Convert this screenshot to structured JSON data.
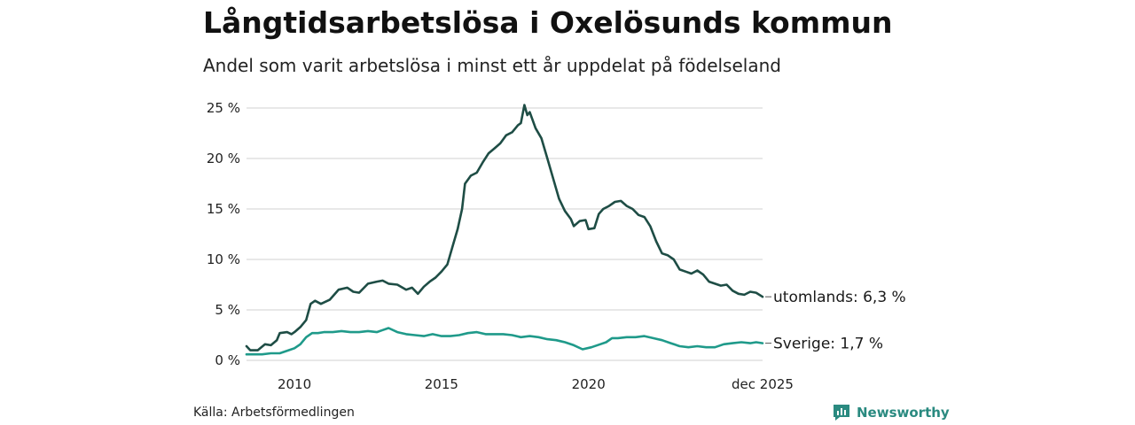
{
  "title": "Långtidsarbetslösa i Oxelösunds kommun",
  "subtitle": "Andel som varit arbetslösa i minst ett år uppdelat på födelseland",
  "source": "Källa: Arbetsförmedlingen",
  "brand": "Newsworthy",
  "chart_data": {
    "type": "line",
    "title": "Långtidsarbetslösa i Oxelösunds kommun",
    "subtitle": "Andel som varit arbetslösa i minst ett år uppdelat på födelseland",
    "x_range": [
      2008.37,
      2025.92
    ],
    "y_range": [
      0,
      25
    ],
    "y_ticks": [
      0,
      5,
      10,
      15,
      20,
      25
    ],
    "y_tick_labels": [
      "0 %",
      "5 %",
      "10 %",
      "15 %",
      "20 %",
      "25 %"
    ],
    "x_ticks": [
      2010,
      2015,
      2020,
      2025.92
    ],
    "x_tick_labels": [
      "2010",
      "2015",
      "2020",
      "dec 2025"
    ],
    "grid": true,
    "series": [
      {
        "name": "utomlands",
        "end_label": "utomlands: 6,3 %",
        "color": "#1e4d45",
        "points": [
          [
            2008.37,
            1.4
          ],
          [
            2008.5,
            1.0
          ],
          [
            2008.75,
            1.0
          ],
          [
            2009.0,
            1.6
          ],
          [
            2009.2,
            1.5
          ],
          [
            2009.4,
            2.0
          ],
          [
            2009.5,
            2.7
          ],
          [
            2009.75,
            2.8
          ],
          [
            2009.9,
            2.6
          ],
          [
            2010.0,
            2.8
          ],
          [
            2010.2,
            3.3
          ],
          [
            2010.4,
            4.0
          ],
          [
            2010.55,
            5.6
          ],
          [
            2010.7,
            5.9
          ],
          [
            2010.9,
            5.6
          ],
          [
            2011.2,
            6.0
          ],
          [
            2011.5,
            7.0
          ],
          [
            2011.8,
            7.2
          ],
          [
            2012.0,
            6.8
          ],
          [
            2012.2,
            6.7
          ],
          [
            2012.5,
            7.6
          ],
          [
            2012.8,
            7.8
          ],
          [
            2013.0,
            7.9
          ],
          [
            2013.2,
            7.6
          ],
          [
            2013.5,
            7.5
          ],
          [
            2013.8,
            7.0
          ],
          [
            2014.0,
            7.2
          ],
          [
            2014.2,
            6.6
          ],
          [
            2014.4,
            7.3
          ],
          [
            2014.6,
            7.8
          ],
          [
            2014.8,
            8.2
          ],
          [
            2015.0,
            8.8
          ],
          [
            2015.2,
            9.5
          ],
          [
            2015.4,
            11.5
          ],
          [
            2015.55,
            13.0
          ],
          [
            2015.7,
            15.0
          ],
          [
            2015.8,
            17.5
          ],
          [
            2016.0,
            18.3
          ],
          [
            2016.2,
            18.6
          ],
          [
            2016.4,
            19.6
          ],
          [
            2016.6,
            20.5
          ],
          [
            2016.8,
            21.0
          ],
          [
            2017.0,
            21.5
          ],
          [
            2017.2,
            22.3
          ],
          [
            2017.4,
            22.6
          ],
          [
            2017.6,
            23.3
          ],
          [
            2017.7,
            23.5
          ],
          [
            2017.82,
            25.3
          ],
          [
            2017.92,
            24.3
          ],
          [
            2018.0,
            24.6
          ],
          [
            2018.2,
            23.0
          ],
          [
            2018.4,
            22.0
          ],
          [
            2018.6,
            20.0
          ],
          [
            2018.8,
            18.0
          ],
          [
            2019.0,
            16.0
          ],
          [
            2019.2,
            14.8
          ],
          [
            2019.4,
            14.0
          ],
          [
            2019.5,
            13.3
          ],
          [
            2019.7,
            13.8
          ],
          [
            2019.9,
            13.9
          ],
          [
            2020.0,
            13.0
          ],
          [
            2020.2,
            13.1
          ],
          [
            2020.35,
            14.5
          ],
          [
            2020.5,
            15.0
          ],
          [
            2020.7,
            15.3
          ],
          [
            2020.9,
            15.7
          ],
          [
            2021.1,
            15.8
          ],
          [
            2021.3,
            15.3
          ],
          [
            2021.5,
            15.0
          ],
          [
            2021.7,
            14.4
          ],
          [
            2021.9,
            14.2
          ],
          [
            2022.1,
            13.3
          ],
          [
            2022.3,
            11.8
          ],
          [
            2022.5,
            10.6
          ],
          [
            2022.7,
            10.4
          ],
          [
            2022.9,
            10.0
          ],
          [
            2023.1,
            9.0
          ],
          [
            2023.3,
            8.8
          ],
          [
            2023.5,
            8.6
          ],
          [
            2023.7,
            8.9
          ],
          [
            2023.9,
            8.5
          ],
          [
            2024.1,
            7.8
          ],
          [
            2024.3,
            7.6
          ],
          [
            2024.5,
            7.4
          ],
          [
            2024.7,
            7.5
          ],
          [
            2024.9,
            6.9
          ],
          [
            2025.1,
            6.6
          ],
          [
            2025.3,
            6.5
          ],
          [
            2025.5,
            6.8
          ],
          [
            2025.7,
            6.7
          ],
          [
            2025.92,
            6.3
          ]
        ]
      },
      {
        "name": "Sverige",
        "end_label": "Sverige: 1,7 %",
        "color": "#1f9a8a",
        "points": [
          [
            2008.37,
            0.6
          ],
          [
            2008.6,
            0.6
          ],
          [
            2008.9,
            0.6
          ],
          [
            2009.2,
            0.7
          ],
          [
            2009.5,
            0.7
          ],
          [
            2009.8,
            1.0
          ],
          [
            2010.0,
            1.2
          ],
          [
            2010.2,
            1.6
          ],
          [
            2010.4,
            2.3
          ],
          [
            2010.6,
            2.7
          ],
          [
            2010.8,
            2.7
          ],
          [
            2011.0,
            2.8
          ],
          [
            2011.3,
            2.8
          ],
          [
            2011.6,
            2.9
          ],
          [
            2011.9,
            2.8
          ],
          [
            2012.2,
            2.8
          ],
          [
            2012.5,
            2.9
          ],
          [
            2012.8,
            2.8
          ],
          [
            2013.0,
            3.0
          ],
          [
            2013.2,
            3.2
          ],
          [
            2013.5,
            2.8
          ],
          [
            2013.8,
            2.6
          ],
          [
            2014.1,
            2.5
          ],
          [
            2014.4,
            2.4
          ],
          [
            2014.7,
            2.6
          ],
          [
            2015.0,
            2.4
          ],
          [
            2015.3,
            2.4
          ],
          [
            2015.6,
            2.5
          ],
          [
            2015.9,
            2.7
          ],
          [
            2016.2,
            2.8
          ],
          [
            2016.5,
            2.6
          ],
          [
            2016.8,
            2.6
          ],
          [
            2017.1,
            2.6
          ],
          [
            2017.4,
            2.5
          ],
          [
            2017.7,
            2.3
          ],
          [
            2018.0,
            2.4
          ],
          [
            2018.3,
            2.3
          ],
          [
            2018.6,
            2.1
          ],
          [
            2018.9,
            2.0
          ],
          [
            2019.2,
            1.8
          ],
          [
            2019.5,
            1.5
          ],
          [
            2019.8,
            1.1
          ],
          [
            2020.1,
            1.3
          ],
          [
            2020.4,
            1.6
          ],
          [
            2020.6,
            1.8
          ],
          [
            2020.8,
            2.2
          ],
          [
            2021.0,
            2.2
          ],
          [
            2021.3,
            2.3
          ],
          [
            2021.6,
            2.3
          ],
          [
            2021.9,
            2.4
          ],
          [
            2022.2,
            2.2
          ],
          [
            2022.5,
            2.0
          ],
          [
            2022.8,
            1.7
          ],
          [
            2023.1,
            1.4
          ],
          [
            2023.4,
            1.3
          ],
          [
            2023.7,
            1.4
          ],
          [
            2024.0,
            1.3
          ],
          [
            2024.3,
            1.3
          ],
          [
            2024.6,
            1.6
          ],
          [
            2024.9,
            1.7
          ],
          [
            2025.2,
            1.8
          ],
          [
            2025.5,
            1.7
          ],
          [
            2025.7,
            1.8
          ],
          [
            2025.92,
            1.7
          ]
        ]
      }
    ]
  },
  "colors": {
    "utomlands": "#1e4d45",
    "sverige": "#1f9a8a",
    "grid": "#d9d9d9",
    "brand": "#2a8a80"
  }
}
